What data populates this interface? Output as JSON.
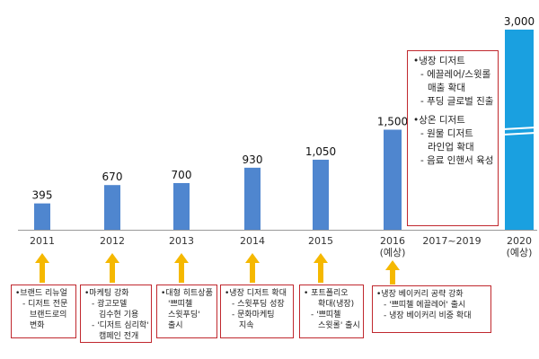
{
  "chart_data": {
    "type": "bar",
    "categories": [
      "2011",
      "2012",
      "2013",
      "2014",
      "2015",
      "2016 (예상)",
      "2017~2019",
      "2020 (예상)"
    ],
    "category_lines": [
      [
        "2011"
      ],
      [
        "2012"
      ],
      [
        "2013"
      ],
      [
        "2014"
      ],
      [
        "2015"
      ],
      [
        "2016",
        "(예상)"
      ],
      [
        "2017~2019"
      ],
      [
        "2020",
        "(예상)"
      ]
    ],
    "values": [
      395,
      670,
      700,
      930,
      1050,
      1500,
      null,
      3000
    ],
    "value_labels": [
      "395",
      "670",
      "700",
      "930",
      "1,050",
      "1,500",
      "",
      "3,000"
    ],
    "ylim": [
      0,
      3000
    ],
    "grid": false,
    "legend": "none",
    "colors": {
      "bar": "#4f86cf",
      "bar_highlight": "#1aa0e0",
      "arrow": "#f5b800",
      "border": "#c0282e",
      "axis": "#999999"
    }
  },
  "notes": [
    {
      "lines": [
        "•브랜드 리뉴얼",
        "- 디저트 전문",
        "브랜드로의",
        "변화"
      ]
    },
    {
      "lines": [
        "•마케팅 강화",
        "- 광고모델",
        "김수현 기용",
        "- '디저트 심리학'",
        "캠페인 전개"
      ]
    },
    {
      "lines": [
        "•대형 히트상품",
        "'쁘띠첼",
        "스윗푸딩'",
        "출시"
      ]
    },
    {
      "lines": [
        "•냉장 디저트 확대",
        "- 스윗푸딩 성장",
        "- 문화마케팅",
        "지속"
      ]
    },
    {
      "lines": [
        "• 포트폴리오",
        "확대(냉장)",
        "- '쁘띠첼",
        "스윗롤' 출시"
      ]
    },
    {
      "lines": [
        "•냉장 베이커리 공략 강화",
        "- '쁘띠첼 에끌레어' 출시",
        "- 냉장 베이커리 비중 확대"
      ]
    }
  ],
  "big_note": {
    "lines1": [
      "•냉장 디저트",
      "- 에끌레어/스윗롤",
      "매출 확대",
      "- 푸딩 글로벌 진출"
    ],
    "lines2": [
      "•상온 디저트",
      "- 원물 디저트",
      "라인업 확대",
      "- 음료 인핸서 육성"
    ]
  }
}
